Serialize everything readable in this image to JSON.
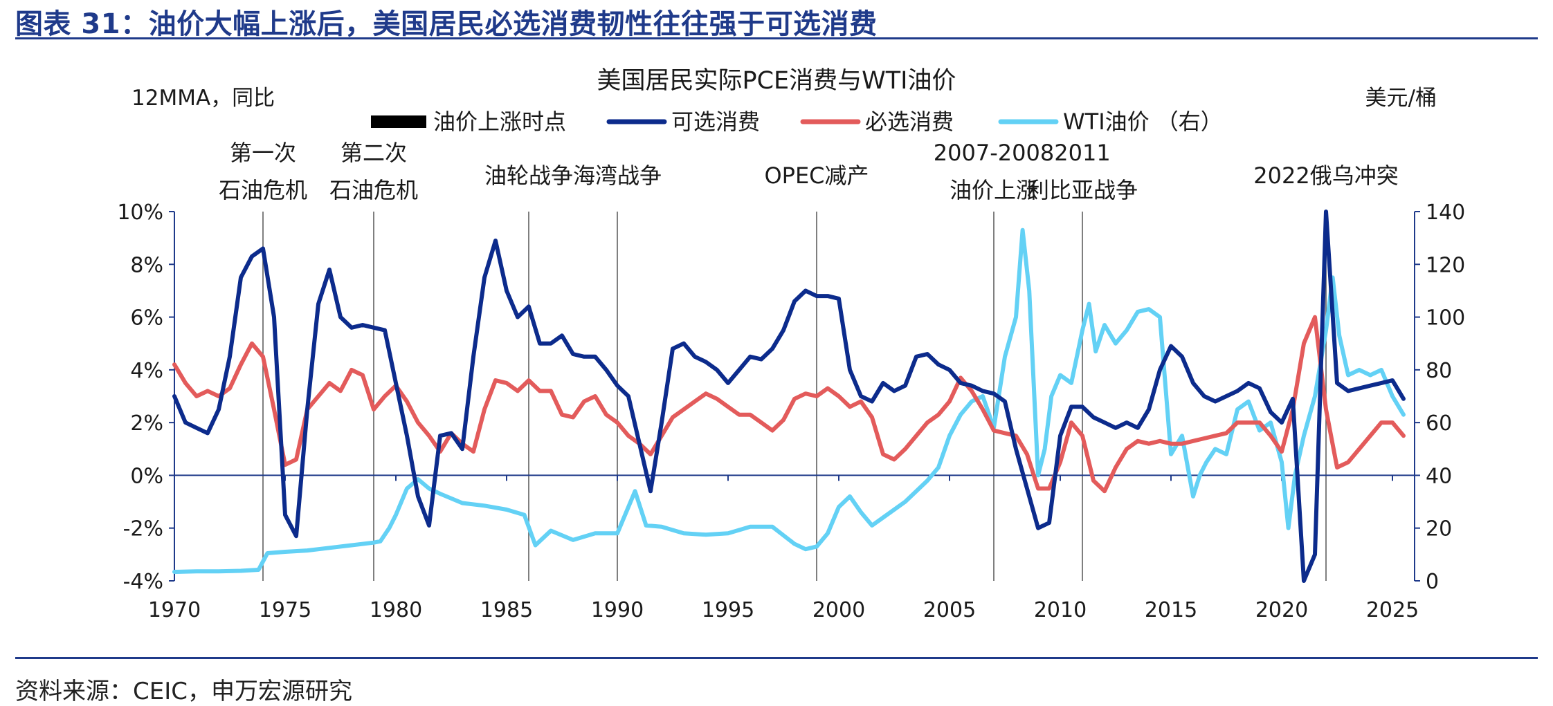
{
  "figure": {
    "title": "图表 31：油价大幅上涨后，美国居民必选消费韧性往往强于可选消费",
    "source": "资料来源：CEIC，申万宏源研究"
  },
  "colors": {
    "brand": "#1f3a8a",
    "discretionary": "#0c2b8c",
    "necessity": "#e35b5b",
    "wti": "#63d1f5",
    "event_line": "#555555",
    "axis": "#1f3a8a"
  },
  "chart_data": {
    "type": "line",
    "title": "美国居民实际PCE消费与WTI油价",
    "left_axis_label": "12MMA，同比",
    "right_axis_label": "美元/桶",
    "xlim": [
      1970,
      2026
    ],
    "ylim_left": [
      -4,
      10
    ],
    "ylim_right": [
      0,
      140
    ],
    "x_ticks": [
      "1970",
      "1975",
      "1980",
      "1985",
      "1990",
      "1995",
      "2000",
      "2005",
      "2010",
      "2015",
      "2020",
      "2025"
    ],
    "y_left_ticks": [
      "10%",
      "8%",
      "6%",
      "4%",
      "2%",
      "0%",
      "-2%",
      "-4%"
    ],
    "y_right_ticks": [
      "140",
      "120",
      "100",
      "80",
      "60",
      "40",
      "20",
      "0"
    ],
    "grid": false,
    "legend_position": "top",
    "legend": [
      {
        "name": "油价上涨时点",
        "kind": "bar"
      },
      {
        "name": "可选消费",
        "kind": "line"
      },
      {
        "name": "必选消费",
        "kind": "line"
      },
      {
        "name": "WTI油价 （右）",
        "kind": "line"
      }
    ],
    "events": [
      {
        "x": 1974.0,
        "label_lines": [
          "第一次",
          "石油危机"
        ]
      },
      {
        "x": 1979.0,
        "label_lines": [
          "第二次",
          "石油危机"
        ]
      },
      {
        "x": 1986.0,
        "label_lines": [
          "油轮战争"
        ]
      },
      {
        "x": 1990.0,
        "label_lines": [
          "海湾战争"
        ]
      },
      {
        "x": 1999.0,
        "label_lines": [
          "OPEC减产"
        ]
      },
      {
        "x": 2007.0,
        "label_lines": [
          "2007-2008",
          "油价上涨"
        ]
      },
      {
        "x": 2011.0,
        "label_lines": [
          "2011",
          "利比亚战争"
        ]
      },
      {
        "x": 2022.0,
        "label_lines": [
          "2022俄乌冲突"
        ]
      }
    ],
    "series": [
      {
        "name": "可选消费",
        "axis": "left",
        "x": [
          1970,
          1970.5,
          1971,
          1971.5,
          1972,
          1972.5,
          1973,
          1973.5,
          1974,
          1974.5,
          1975,
          1975.5,
          1976,
          1976.5,
          1977,
          1977.5,
          1978,
          1978.5,
          1979,
          1979.5,
          1980,
          1980.5,
          1981,
          1981.5,
          1982,
          1982.5,
          1983,
          1983.5,
          1984,
          1984.5,
          1985,
          1985.5,
          1986,
          1986.5,
          1987,
          1987.5,
          1988,
          1988.5,
          1989,
          1989.5,
          1990,
          1990.5,
          1991,
          1991.5,
          1992,
          1992.5,
          1993,
          1993.5,
          1994,
          1994.5,
          1995,
          1995.5,
          1996,
          1996.5,
          1997,
          1997.5,
          1998,
          1998.5,
          1999,
          1999.5,
          2000,
          2000.5,
          2001,
          2001.5,
          2002,
          2002.5,
          2003,
          2003.5,
          2004,
          2004.5,
          2005,
          2005.5,
          2006,
          2006.5,
          2007,
          2007.5,
          2008,
          2008.5,
          2009,
          2009.5,
          2010,
          2010.5,
          2011,
          2011.5,
          2012,
          2012.5,
          2013,
          2013.5,
          2014,
          2014.5,
          2015,
          2015.5,
          2016,
          2016.5,
          2017,
          2017.5,
          2018,
          2018.5,
          2019,
          2019.5,
          2020,
          2020.5,
          2021,
          2021.5,
          2022,
          2022.5,
          2023,
          2023.5,
          2024,
          2024.5,
          2025,
          2025.5
        ],
        "values": [
          3.0,
          2.0,
          1.8,
          1.6,
          2.5,
          4.5,
          7.5,
          8.3,
          8.6,
          6.0,
          -1.5,
          -2.3,
          2.5,
          6.5,
          7.8,
          6.0,
          5.6,
          5.7,
          5.6,
          5.5,
          3.5,
          1.5,
          -0.8,
          -1.9,
          1.5,
          1.6,
          1.0,
          4.5,
          7.5,
          8.9,
          7.0,
          6.0,
          6.4,
          5.0,
          5.0,
          5.3,
          4.6,
          4.5,
          4.5,
          4.0,
          3.4,
          3.0,
          1.2,
          -0.6,
          2.0,
          4.8,
          5.0,
          4.5,
          4.3,
          4.0,
          3.5,
          4.0,
          4.5,
          4.4,
          4.8,
          5.5,
          6.6,
          7.0,
          6.8,
          6.8,
          6.7,
          4.0,
          3.0,
          2.8,
          3.5,
          3.2,
          3.4,
          4.5,
          4.6,
          4.2,
          4.0,
          3.5,
          3.4,
          3.2,
          3.1,
          2.8,
          1.0,
          -0.5,
          -2.0,
          -1.8,
          1.5,
          2.6,
          2.6,
          2.2,
          2.0,
          1.8,
          2.0,
          1.8,
          2.5,
          4.0,
          4.9,
          4.5,
          3.5,
          3.0,
          2.8,
          3.0,
          3.2,
          3.5,
          3.3,
          2.4,
          2.0,
          2.9,
          -4.0,
          -3.0,
          10.0,
          3.5,
          3.2,
          3.3,
          3.4,
          3.5,
          3.6,
          2.9
        ]
      },
      {
        "name": "必选消费",
        "axis": "left",
        "x": [
          1970,
          1970.5,
          1971,
          1971.5,
          1972,
          1972.5,
          1973,
          1973.5,
          1974,
          1974.5,
          1975,
          1975.5,
          1976,
          1976.5,
          1977,
          1977.5,
          1978,
          1978.5,
          1979,
          1979.5,
          1980,
          1980.5,
          1981,
          1981.5,
          1982,
          1982.5,
          1983,
          1983.5,
          1984,
          1984.5,
          1985,
          1985.5,
          1986,
          1986.5,
          1987,
          1987.5,
          1988,
          1988.5,
          1989,
          1989.5,
          1990,
          1990.5,
          1991,
          1991.5,
          1992,
          1992.5,
          1993,
          1993.5,
          1994,
          1994.5,
          1995,
          1995.5,
          1996,
          1996.5,
          1997,
          1997.5,
          1998,
          1998.5,
          1999,
          1999.5,
          2000,
          2000.5,
          2001,
          2001.5,
          2002,
          2002.5,
          2003,
          2003.5,
          2004,
          2004.5,
          2005,
          2005.5,
          2006,
          2006.5,
          2007,
          2007.5,
          2008,
          2008.5,
          2009,
          2009.5,
          2010,
          2010.5,
          2011,
          2011.5,
          2012,
          2012.5,
          2013,
          2013.5,
          2014,
          2014.5,
          2015,
          2015.5,
          2016,
          2016.5,
          2017,
          2017.5,
          2018,
          2018.5,
          2019,
          2019.5,
          2020,
          2020.5,
          2021,
          2021.5,
          2022,
          2022.5,
          2023,
          2023.5,
          2024,
          2024.5,
          2025,
          2025.5
        ],
        "values": [
          4.2,
          3.5,
          3.0,
          3.2,
          3.0,
          3.3,
          4.2,
          5.0,
          4.5,
          2.5,
          0.4,
          0.6,
          2.5,
          3.0,
          3.5,
          3.2,
          4.0,
          3.8,
          2.5,
          3.0,
          3.4,
          2.8,
          2.0,
          1.5,
          0.9,
          1.6,
          1.2,
          0.9,
          2.5,
          3.6,
          3.5,
          3.2,
          3.6,
          3.2,
          3.2,
          2.3,
          2.2,
          2.8,
          3.0,
          2.3,
          2.0,
          1.5,
          1.2,
          0.8,
          1.5,
          2.2,
          2.5,
          2.8,
          3.1,
          2.9,
          2.6,
          2.3,
          2.3,
          2.0,
          1.7,
          2.1,
          2.9,
          3.1,
          3.0,
          3.3,
          3.0,
          2.6,
          2.8,
          2.2,
          0.8,
          0.6,
          1.0,
          1.5,
          2.0,
          2.3,
          2.8,
          3.7,
          3.2,
          2.5,
          1.7,
          1.6,
          1.5,
          0.8,
          -0.5,
          -0.5,
          0.5,
          2.0,
          1.5,
          -0.2,
          -0.6,
          0.3,
          1.0,
          1.3,
          1.2,
          1.3,
          1.2,
          1.2,
          1.3,
          1.4,
          1.5,
          1.6,
          2.0,
          2.0,
          2.0,
          1.5,
          0.9,
          2.5,
          5.0,
          6.0,
          2.5,
          0.3,
          0.5,
          1.0,
          1.5,
          2.0,
          2.0,
          1.5
        ]
      },
      {
        "name": "WTI油价 （右）",
        "axis": "right",
        "x": [
          1970,
          1971,
          1972,
          1973,
          1973.8,
          1974.2,
          1975,
          1976,
          1977,
          1978,
          1979,
          1979.3,
          1979.7,
          1980,
          1980.5,
          1981,
          1981.5,
          1982,
          1983,
          1984,
          1985,
          1985.8,
          1986.3,
          1987,
          1988,
          1989,
          1990,
          1990.5,
          1990.8,
          1991.3,
          1992,
          1993,
          1994,
          1995,
          1996,
          1997,
          1998,
          1998.5,
          1999,
          1999.5,
          2000,
          2000.5,
          2001,
          2001.5,
          2002,
          2003,
          2004,
          2004.5,
          2005,
          2005.5,
          2006,
          2006.5,
          2007,
          2007.5,
          2008,
          2008.3,
          2008.6,
          2009,
          2009.3,
          2009.6,
          2010,
          2010.5,
          2011,
          2011.3,
          2011.6,
          2012,
          2012.5,
          2013,
          2013.5,
          2014,
          2014.5,
          2015,
          2015.5,
          2016,
          2016.3,
          2016.6,
          2017,
          2017.5,
          2018,
          2018.5,
          2019,
          2019.5,
          2020,
          2020.3,
          2020.6,
          2021,
          2021.5,
          2022,
          2022.3,
          2022.6,
          2023,
          2023.5,
          2024,
          2024.5,
          2025,
          2025.5
        ],
        "values": [
          3.4,
          3.6,
          3.6,
          3.8,
          4.2,
          10.5,
          11.0,
          11.5,
          12.5,
          13.5,
          14.5,
          15.0,
          20.0,
          25.0,
          35.0,
          38.5,
          35.0,
          33.0,
          29.5,
          28.5,
          27.0,
          25.0,
          13.5,
          19.0,
          15.5,
          18.0,
          18.0,
          28.0,
          34.0,
          21.0,
          20.5,
          18.0,
          17.5,
          18.0,
          20.5,
          20.5,
          14.0,
          12.0,
          13.0,
          18.0,
          28.0,
          32.0,
          26.0,
          21.0,
          24.0,
          30.0,
          38.0,
          43.0,
          55.0,
          63.0,
          68.0,
          70.0,
          58.0,
          85.0,
          100.0,
          133.0,
          110.0,
          40.0,
          50.0,
          70.0,
          78.0,
          75.0,
          95.0,
          105.0,
          87.0,
          97.0,
          90.0,
          95.0,
          102.0,
          103.0,
          100.0,
          48.0,
          55.0,
          32.0,
          40.0,
          45.0,
          50.0,
          48.0,
          65.0,
          68.0,
          57.0,
          60.0,
          45.0,
          20.0,
          40.0,
          55.0,
          70.0,
          95.0,
          115.0,
          93.0,
          78.0,
          80.0,
          78.0,
          80.0,
          70.0,
          63.0
        ]
      }
    ]
  }
}
